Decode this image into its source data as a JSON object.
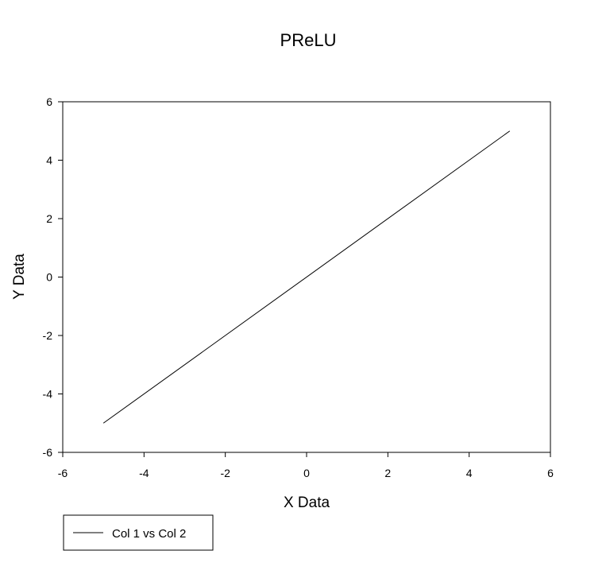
{
  "chart_data": {
    "type": "line",
    "title": "PReLU",
    "xlabel": "X Data",
    "ylabel": "Y Data",
    "xlim": [
      -6,
      6
    ],
    "ylim": [
      -6,
      6
    ],
    "xticks": [
      -6,
      -4,
      -2,
      0,
      2,
      4,
      6
    ],
    "yticks": [
      -6,
      -4,
      -2,
      0,
      2,
      4,
      6
    ],
    "grid": false,
    "legend_position": "bottom-left",
    "series": [
      {
        "name": "Col 1 vs Col 2",
        "color": "#000000",
        "x": [
          -5,
          5
        ],
        "y": [
          -5,
          5
        ]
      }
    ]
  }
}
